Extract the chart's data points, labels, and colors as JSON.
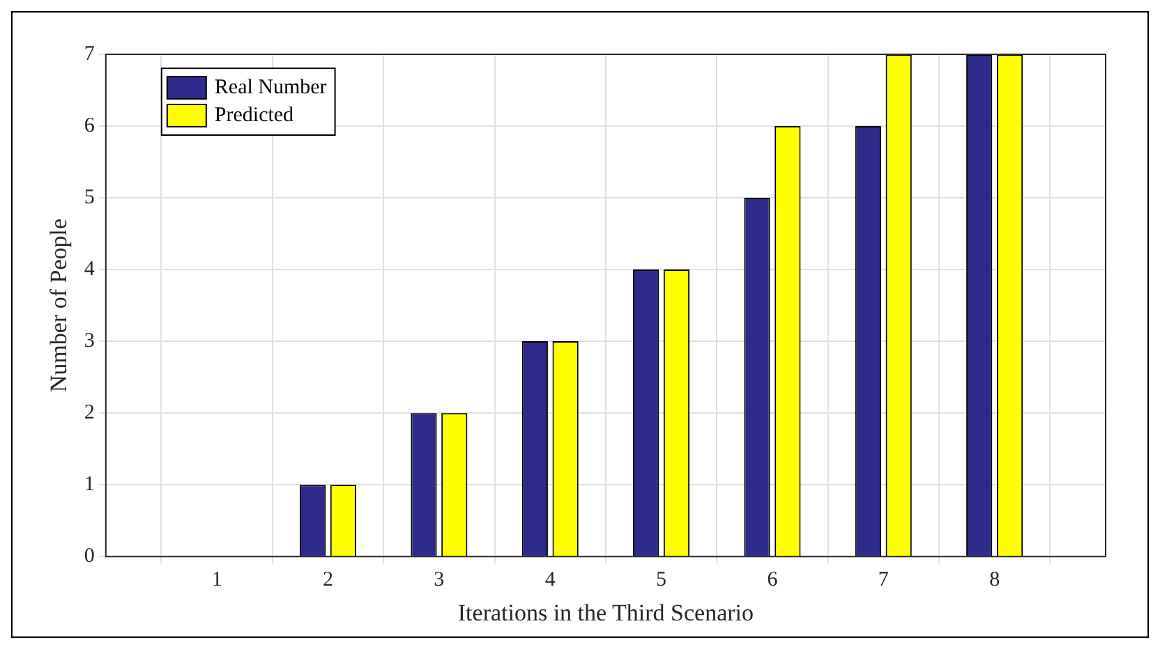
{
  "chart_data": {
    "type": "bar",
    "xlabel": "Iterations in the Third Scenario",
    "ylabel": "Number of People",
    "x": [
      1,
      2,
      3,
      4,
      5,
      6,
      7,
      8
    ],
    "xlim": [
      0,
      9
    ],
    "xticks": [
      1,
      2,
      3,
      4,
      5,
      6,
      7,
      8
    ],
    "ylim": [
      0,
      7
    ],
    "yticks": [
      0,
      1,
      2,
      3,
      4,
      5,
      6,
      7
    ],
    "series": [
      {
        "name": "Real Number",
        "color": "#2e2a8c",
        "values": [
          0,
          1,
          2,
          3,
          4,
          5,
          6,
          7
        ]
      },
      {
        "name": "Predicted",
        "color": "#ffff00",
        "values": [
          0,
          1,
          2,
          3,
          4,
          6,
          7,
          7
        ]
      }
    ],
    "grid": true,
    "legend": "top left"
  }
}
